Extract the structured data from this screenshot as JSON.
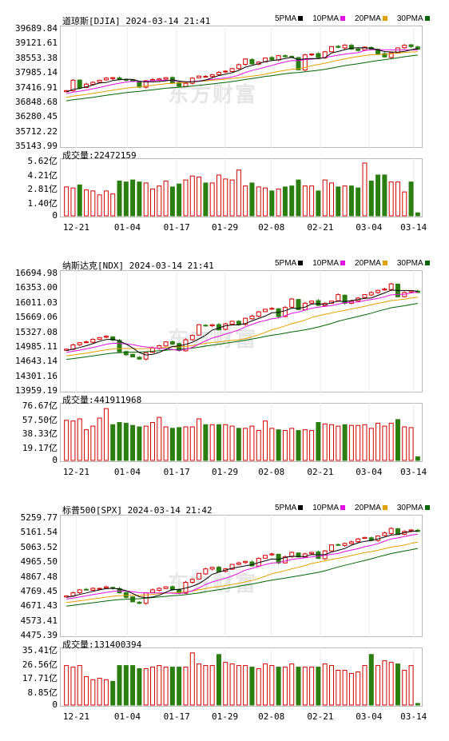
{
  "watermark": "东方财富",
  "legend": {
    "ma5": "5PMA",
    "ma10": "10PMA",
    "ma20": "20PMA",
    "ma30": "30PMA",
    "colors": {
      "ma5": "#000000",
      "ma10": "#e10fe0",
      "ma20": "#e3a100",
      "ma30": "#006600",
      "up": "#d40000",
      "down": "#2a7f10"
    }
  },
  "x_labels": [
    "12-21",
    "01-04",
    "01-17",
    "01-29",
    "02-08",
    "02-21",
    "03-04",
    "03-14"
  ],
  "chart_data": [
    {
      "type": "candlestick",
      "title": "道琼斯[DJIA] 2024-03-14 21:41",
      "y_ticks": [
        "39689.84",
        "39121.61",
        "38553.38",
        "37985.14",
        "37416.91",
        "36848.68",
        "36280.45",
        "35712.22",
        "35143.99"
      ],
      "ylim": [
        35143.99,
        39689.84
      ],
      "closes": [
        37300,
        37700,
        37400,
        37550,
        37620,
        37700,
        37780,
        37800,
        37720,
        37700,
        37650,
        37430,
        37680,
        37730,
        37750,
        37800,
        37590,
        37470,
        37580,
        37780,
        37860,
        37850,
        37910,
        38000,
        38050,
        38150,
        38300,
        38520,
        38330,
        38400,
        38560,
        38500,
        38650,
        38610,
        38600,
        38100,
        38680,
        38710,
        38580,
        38800,
        39000,
        38970,
        39060,
        38900,
        38850,
        38980,
        38900,
        38720,
        38600,
        38760,
        38950,
        39050,
        39000,
        38900
      ],
      "volume_label": "成交量:22472159",
      "volume_ticks": [
        "5.62亿",
        "4.21亿",
        "2.81亿",
        "1.40亿",
        "0"
      ],
      "volume_max": 5.62,
      "volumes": [
        2.9,
        2.8,
        3.1,
        2.6,
        2.5,
        2.1,
        2.5,
        2.2,
        3.5,
        3.4,
        3.6,
        3.4,
        3.3,
        2.7,
        3.0,
        3.5,
        2.9,
        3.2,
        3.6,
        4.0,
        3.9,
        3.3,
        3.3,
        4.1,
        3.7,
        3.6,
        4.6,
        3.0,
        3.3,
        2.9,
        2.8,
        2.5,
        2.7,
        2.9,
        3.0,
        3.6,
        3.0,
        3.0,
        2.5,
        3.6,
        3.3,
        2.9,
        3.0,
        3.0,
        2.8,
        5.3,
        3.5,
        4.1,
        4.1,
        3.4,
        3.4,
        2.4,
        3.4,
        0.3
      ]
    },
    {
      "type": "candlestick",
      "title": "纳斯达克[NDX] 2024-03-14 21:41",
      "y_ticks": [
        "16694.98",
        "16353.00",
        "16011.03",
        "15669.06",
        "15327.08",
        "14985.11",
        "14643.14",
        "14301.16",
        "13959.19"
      ],
      "ylim": [
        13959.19,
        16694.98
      ],
      "closes": [
        14930,
        15030,
        15080,
        15100,
        15160,
        15200,
        15230,
        15140,
        14870,
        14800,
        14750,
        14700,
        14850,
        14960,
        15010,
        15100,
        15050,
        14900,
        15150,
        15250,
        15500,
        15480,
        15500,
        15380,
        15520,
        15580,
        15500,
        15650,
        15700,
        15800,
        15860,
        15880,
        15690,
        15900,
        16100,
        15850,
        16000,
        16050,
        15950,
        16000,
        16050,
        16200,
        16000,
        16050,
        16120,
        16200,
        16250,
        16300,
        16330,
        16450,
        16150,
        16250,
        16290,
        16250
      ],
      "volume_label": "成交量:441911968",
      "volume_ticks": [
        "76.67亿",
        "57.50亿",
        "38.33亿",
        "19.17亿",
        "0"
      ],
      "volume_max": 76.67,
      "volumes": [
        55,
        54,
        57,
        42,
        47,
        58,
        71,
        49,
        52,
        51,
        48,
        46,
        47,
        52,
        59,
        46,
        44,
        45,
        46,
        46,
        57,
        49,
        49,
        49,
        49,
        47,
        44,
        44,
        47,
        41,
        54,
        44,
        42,
        41,
        44,
        41,
        42,
        41,
        52,
        50,
        49,
        47,
        49,
        48,
        48,
        49,
        44,
        51,
        47,
        51,
        56,
        46,
        45,
        5
      ]
    },
    {
      "type": "candlestick",
      "title": "标普500[SPX] 2024-03-14 21:42",
      "y_ticks": [
        "5259.77",
        "5161.54",
        "5063.52",
        "4965.50",
        "4867.48",
        "4769.45",
        "4671.43",
        "4573.41",
        "4475.39"
      ],
      "ylim": [
        4475.39,
        5259.77
      ],
      "closes": [
        4740,
        4760,
        4780,
        4780,
        4790,
        4790,
        4800,
        4790,
        4760,
        4730,
        4700,
        4690,
        4760,
        4780,
        4790,
        4800,
        4780,
        4760,
        4830,
        4850,
        4890,
        4920,
        4930,
        4900,
        4920,
        4950,
        4960,
        4970,
        4940,
        4990,
        5010,
        5020,
        4960,
        5000,
        5030,
        5000,
        5020,
        5030,
        4990,
        5040,
        5080,
        5080,
        5090,
        5100,
        5120,
        5130,
        5110,
        5140,
        5160,
        5190,
        5150,
        5170,
        5180,
        5170
      ],
      "volume_label": "成交量:131400394",
      "volume_ticks": [
        "35.41亿",
        "26.56亿",
        "17.71亿",
        "8.85亿",
        "0"
      ],
      "volume_max": 35.41,
      "volumes": [
        25,
        24,
        25,
        18,
        16,
        17,
        16,
        15,
        25,
        25,
        25,
        23,
        23,
        24,
        25,
        24,
        24,
        24,
        24,
        33,
        26,
        25,
        25,
        32,
        27,
        26,
        25,
        25,
        24,
        23,
        26,
        25,
        24,
        24,
        26,
        24,
        24,
        24,
        24,
        26,
        25,
        22,
        22,
        20,
        21,
        25,
        32,
        25,
        28,
        27,
        26,
        22,
        25,
        1
      ]
    }
  ]
}
